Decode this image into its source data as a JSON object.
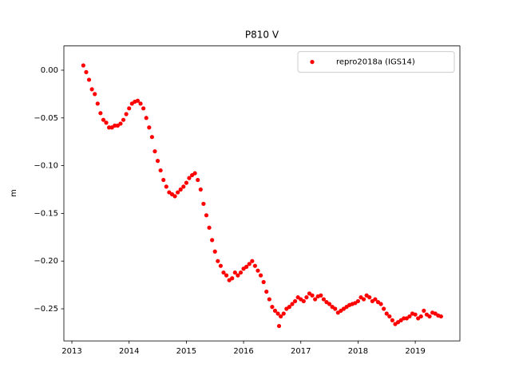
{
  "chart_data": {
    "type": "scatter",
    "title": "P810 V",
    "ylabel": "m",
    "xlim": [
      2012.86,
      2019.78
    ],
    "xticks": [
      2013,
      2014,
      2015,
      2016,
      2017,
      2018,
      2019
    ],
    "ylim": [
      -0.2836,
      0.0254
    ],
    "yticks": [
      {
        "value": 0,
        "label": "0.00"
      },
      {
        "value": -0.05,
        "label": "−0.05"
      },
      {
        "value": -0.1,
        "label": "−0.10"
      },
      {
        "value": -0.15,
        "label": "−0.15"
      },
      {
        "value": -0.2,
        "label": "−0.20"
      },
      {
        "value": -0.25,
        "label": "−0.25"
      }
    ],
    "legend": "upper right",
    "series": [
      {
        "name": "repro2018a (IGS14)",
        "color": "#ff0000",
        "x": [
          2013.2,
          2013.25,
          2013.3,
          2013.35,
          2013.4,
          2013.45,
          2013.5,
          2013.55,
          2013.6,
          2013.65,
          2013.7,
          2013.75,
          2013.8,
          2013.85,
          2013.9,
          2013.95,
          2014.0,
          2014.05,
          2014.1,
          2014.15,
          2014.2,
          2014.25,
          2014.3,
          2014.35,
          2014.4,
          2014.45,
          2014.5,
          2014.55,
          2014.6,
          2014.65,
          2014.7,
          2014.75,
          2014.8,
          2014.85,
          2014.9,
          2014.95,
          2015.0,
          2015.05,
          2015.1,
          2015.15,
          2015.2,
          2015.25,
          2015.3,
          2015.35,
          2015.4,
          2015.45,
          2015.5,
          2015.55,
          2015.6,
          2015.65,
          2015.7,
          2015.75,
          2015.8,
          2015.85,
          2015.9,
          2015.95,
          2016.0,
          2016.05,
          2016.1,
          2016.15,
          2016.2,
          2016.25,
          2016.3,
          2016.35,
          2016.4,
          2016.45,
          2016.5,
          2016.55,
          2016.6,
          2016.62,
          2016.65,
          2016.7,
          2016.75,
          2016.8,
          2016.85,
          2016.9,
          2016.95,
          2017.0,
          2017.05,
          2017.1,
          2017.15,
          2017.2,
          2017.25,
          2017.3,
          2017.35,
          2017.4,
          2017.45,
          2017.5,
          2017.55,
          2017.6,
          2017.65,
          2017.7,
          2017.75,
          2017.8,
          2017.85,
          2017.9,
          2017.95,
          2018.0,
          2018.05,
          2018.1,
          2018.15,
          2018.2,
          2018.25,
          2018.3,
          2018.35,
          2018.4,
          2018.45,
          2018.5,
          2018.55,
          2018.6,
          2018.65,
          2018.7,
          2018.75,
          2018.8,
          2018.85,
          2018.9,
          2018.95,
          2019.0,
          2019.05,
          2019.1,
          2019.15,
          2019.2,
          2019.25,
          2019.3,
          2019.35,
          2019.4,
          2019.45
        ],
        "values": [
          0.005,
          -0.002,
          -0.01,
          -0.02,
          -0.025,
          -0.035,
          -0.045,
          -0.052,
          -0.055,
          -0.06,
          -0.06,
          -0.058,
          -0.058,
          -0.056,
          -0.052,
          -0.046,
          -0.04,
          -0.035,
          -0.033,
          -0.032,
          -0.035,
          -0.04,
          -0.05,
          -0.06,
          -0.07,
          -0.085,
          -0.095,
          -0.105,
          -0.115,
          -0.122,
          -0.128,
          -0.13,
          -0.132,
          -0.128,
          -0.125,
          -0.122,
          -0.118,
          -0.113,
          -0.11,
          -0.108,
          -0.115,
          -0.125,
          -0.14,
          -0.152,
          -0.165,
          -0.178,
          -0.19,
          -0.2,
          -0.205,
          -0.212,
          -0.215,
          -0.22,
          -0.218,
          -0.212,
          -0.215,
          -0.212,
          -0.208,
          -0.206,
          -0.203,
          -0.2,
          -0.205,
          -0.21,
          -0.215,
          -0.222,
          -0.232,
          -0.24,
          -0.248,
          -0.252,
          -0.255,
          -0.268,
          -0.258,
          -0.255,
          -0.25,
          -0.248,
          -0.245,
          -0.242,
          -0.238,
          -0.24,
          -0.242,
          -0.238,
          -0.234,
          -0.236,
          -0.24,
          -0.237,
          -0.236,
          -0.24,
          -0.243,
          -0.245,
          -0.248,
          -0.25,
          -0.254,
          -0.252,
          -0.25,
          -0.248,
          -0.246,
          -0.245,
          -0.244,
          -0.242,
          -0.238,
          -0.24,
          -0.236,
          -0.238,
          -0.242,
          -0.24,
          -0.243,
          -0.245,
          -0.25,
          -0.255,
          -0.258,
          -0.262,
          -0.266,
          -0.264,
          -0.262,
          -0.26,
          -0.26,
          -0.258,
          -0.255,
          -0.256,
          -0.26,
          -0.258,
          -0.252,
          -0.256,
          -0.258,
          -0.254,
          -0.255,
          -0.257,
          -0.258
        ]
      }
    ]
  }
}
